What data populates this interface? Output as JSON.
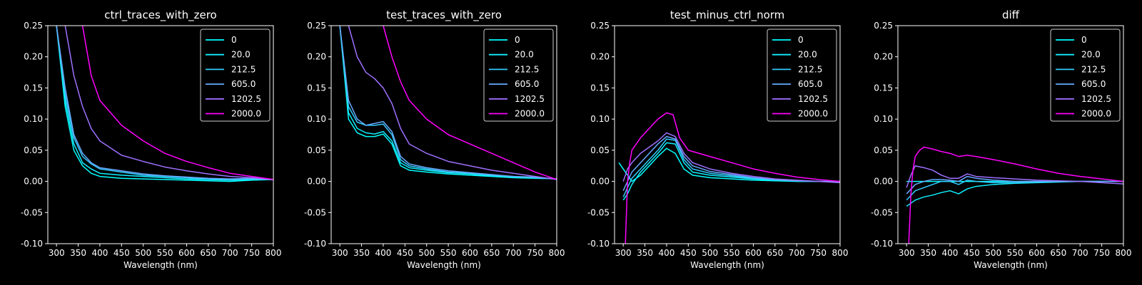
{
  "figure": {
    "background": "#000000",
    "foreground": "#ffffff"
  },
  "chart_data": [
    {
      "type": "line",
      "title": "ctrl_traces_with_zero",
      "xlabel": "Wavelength (nm)",
      "ylabel": "",
      "xlim": [
        280,
        800
      ],
      "ylim": [
        -0.1,
        0.25
      ],
      "xticks": [
        300,
        350,
        400,
        450,
        500,
        550,
        600,
        650,
        700,
        750,
        800
      ],
      "yticks": [
        -0.1,
        -0.05,
        0.0,
        0.05,
        0.1,
        0.15,
        0.2,
        0.25
      ],
      "legend_position": "top-right",
      "series": [
        {
          "name": "0",
          "color": "#00ffff",
          "x": [
            300,
            320,
            340,
            360,
            380,
            400,
            450,
            500,
            550,
            600,
            650,
            700,
            750,
            800
          ],
          "y": [
            0.25,
            0.12,
            0.05,
            0.025,
            0.013,
            0.008,
            0.005,
            0.004,
            0.003,
            0.002,
            0.001,
            0.0,
            0.002,
            0.003
          ]
        },
        {
          "name": "20.0",
          "color": "#0fefff",
          "x": [
            300,
            320,
            340,
            360,
            380,
            400,
            450,
            500,
            550,
            600,
            650,
            700,
            750,
            800
          ],
          "y": [
            0.25,
            0.13,
            0.06,
            0.03,
            0.02,
            0.013,
            0.01,
            0.008,
            0.006,
            0.004,
            0.003,
            0.002,
            0.003,
            0.003
          ]
        },
        {
          "name": "212.5",
          "color": "#33ccff",
          "x": [
            300,
            320,
            340,
            360,
            380,
            400,
            450,
            500,
            550,
            600,
            650,
            700,
            750,
            800
          ],
          "y": [
            0.25,
            0.14,
            0.07,
            0.04,
            0.028,
            0.02,
            0.015,
            0.01,
            0.008,
            0.006,
            0.004,
            0.003,
            0.004,
            0.003
          ]
        },
        {
          "name": "605.0",
          "color": "#66aaff",
          "x": [
            300,
            320,
            340,
            360,
            380,
            400,
            450,
            500,
            550,
            600,
            650,
            700,
            750,
            800
          ],
          "y": [
            0.25,
            0.15,
            0.075,
            0.045,
            0.03,
            0.022,
            0.017,
            0.012,
            0.009,
            0.007,
            0.005,
            0.004,
            0.005,
            0.003
          ]
        },
        {
          "name": "1202.5",
          "color": "#9f70ff",
          "x": [
            320,
            340,
            360,
            380,
            400,
            450,
            500,
            550,
            600,
            650,
            700,
            750,
            800
          ],
          "y": [
            0.25,
            0.17,
            0.12,
            0.085,
            0.065,
            0.042,
            0.032,
            0.023,
            0.017,
            0.012,
            0.008,
            0.006,
            0.003
          ]
        },
        {
          "name": "2000.0",
          "color": "#ff00ff",
          "x": [
            360,
            380,
            400,
            450,
            500,
            550,
            600,
            650,
            700,
            750,
            800
          ],
          "y": [
            0.25,
            0.17,
            0.13,
            0.09,
            0.065,
            0.045,
            0.032,
            0.022,
            0.013,
            0.008,
            0.003
          ]
        }
      ]
    },
    {
      "type": "line",
      "title": "test_traces_with_zero",
      "xlabel": "Wavelength (nm)",
      "ylabel": "",
      "xlim": [
        280,
        800
      ],
      "ylim": [
        -0.1,
        0.25
      ],
      "xticks": [
        300,
        350,
        400,
        450,
        500,
        550,
        600,
        650,
        700,
        750,
        800
      ],
      "yticks": [
        -0.1,
        -0.05,
        0.0,
        0.05,
        0.1,
        0.15,
        0.2,
        0.25
      ],
      "legend_position": "top-right",
      "series": [
        {
          "name": "0",
          "color": "#00ffff",
          "x": [
            300,
            320,
            340,
            360,
            380,
            400,
            420,
            440,
            460,
            500,
            550,
            600,
            650,
            700,
            750,
            800
          ],
          "y": [
            0.25,
            0.1,
            0.078,
            0.072,
            0.072,
            0.076,
            0.06,
            0.025,
            0.018,
            0.015,
            0.012,
            0.01,
            0.008,
            0.006,
            0.005,
            0.004
          ]
        },
        {
          "name": "20.0",
          "color": "#0fefff",
          "x": [
            300,
            320,
            340,
            360,
            380,
            400,
            420,
            440,
            460,
            500,
            550,
            600,
            650,
            700,
            750,
            800
          ],
          "y": [
            0.25,
            0.11,
            0.085,
            0.078,
            0.076,
            0.08,
            0.065,
            0.03,
            0.022,
            0.018,
            0.014,
            0.012,
            0.009,
            0.007,
            0.006,
            0.004
          ]
        },
        {
          "name": "212.5",
          "color": "#33ccff",
          "x": [
            300,
            320,
            340,
            360,
            380,
            400,
            420,
            440,
            460,
            500,
            550,
            600,
            650,
            700,
            750,
            800
          ],
          "y": [
            0.25,
            0.12,
            0.095,
            0.09,
            0.09,
            0.092,
            0.075,
            0.035,
            0.025,
            0.02,
            0.015,
            0.013,
            0.01,
            0.008,
            0.006,
            0.004
          ]
        },
        {
          "name": "605.0",
          "color": "#66aaff",
          "x": [
            300,
            320,
            340,
            360,
            380,
            400,
            420,
            440,
            460,
            500,
            550,
            600,
            650,
            700,
            750,
            800
          ],
          "y": [
            0.25,
            0.13,
            0.1,
            0.09,
            0.093,
            0.096,
            0.08,
            0.04,
            0.028,
            0.022,
            0.017,
            0.014,
            0.011,
            0.008,
            0.007,
            0.004
          ]
        },
        {
          "name": "1202.5",
          "color": "#9f70ff",
          "x": [
            320,
            340,
            360,
            380,
            400,
            420,
            440,
            460,
            500,
            550,
            600,
            650,
            700,
            750,
            800
          ],
          "y": [
            0.25,
            0.2,
            0.175,
            0.165,
            0.15,
            0.125,
            0.085,
            0.06,
            0.045,
            0.032,
            0.025,
            0.018,
            0.013,
            0.008,
            0.003
          ]
        },
        {
          "name": "2000.0",
          "color": "#ff00ff",
          "x": [
            400,
            420,
            440,
            460,
            500,
            550,
            600,
            650,
            700,
            750,
            800
          ],
          "y": [
            0.25,
            0.2,
            0.16,
            0.13,
            0.1,
            0.075,
            0.06,
            0.045,
            0.03,
            0.015,
            0.003
          ]
        }
      ]
    },
    {
      "type": "line",
      "title": "test_minus_ctrl_norm",
      "xlabel": "Wavelength (nm)",
      "ylabel": "",
      "xlim": [
        280,
        800
      ],
      "ylim": [
        -0.1,
        0.25
      ],
      "xticks": [
        300,
        350,
        400,
        450,
        500,
        550,
        600,
        650,
        700,
        750,
        800
      ],
      "yticks": [
        -0.1,
        -0.05,
        0.0,
        0.05,
        0.1,
        0.15,
        0.2,
        0.25
      ],
      "legend_position": "top-right",
      "series": [
        {
          "name": "0",
          "color": "#00ffff",
          "x": [
            290,
            300,
            320,
            340,
            360,
            380,
            400,
            420,
            440,
            460,
            500,
            550,
            600,
            650,
            700,
            750,
            800
          ],
          "y": [
            0.03,
            0.02,
            0.0,
            0.01,
            0.025,
            0.04,
            0.053,
            0.045,
            0.02,
            0.01,
            0.006,
            0.004,
            0.002,
            0.001,
            0.0,
            0.0,
            0.0
          ]
        },
        {
          "name": "20.0",
          "color": "#0fefff",
          "x": [
            300,
            310,
            320,
            340,
            360,
            380,
            400,
            420,
            440,
            460,
            500,
            550,
            600,
            650,
            700,
            750,
            800
          ],
          "y": [
            -0.03,
            -0.02,
            -0.005,
            0.015,
            0.03,
            0.045,
            0.062,
            0.06,
            0.03,
            0.015,
            0.01,
            0.007,
            0.004,
            0.002,
            0.001,
            0.0,
            0.0
          ]
        },
        {
          "name": "212.5",
          "color": "#33ccff",
          "x": [
            300,
            310,
            320,
            340,
            360,
            380,
            400,
            420,
            440,
            460,
            500,
            550,
            600,
            650,
            700,
            750,
            800
          ],
          "y": [
            -0.025,
            -0.01,
            0.005,
            0.02,
            0.035,
            0.05,
            0.068,
            0.066,
            0.035,
            0.02,
            0.013,
            0.009,
            0.005,
            0.003,
            0.001,
            0.0,
            0.0
          ]
        },
        {
          "name": "605.0",
          "color": "#66aaff",
          "x": [
            300,
            310,
            320,
            340,
            360,
            380,
            400,
            420,
            440,
            460,
            500,
            550,
            600,
            650,
            700,
            750,
            800
          ],
          "y": [
            -0.015,
            0.0,
            0.015,
            0.03,
            0.045,
            0.06,
            0.072,
            0.068,
            0.04,
            0.025,
            0.016,
            0.011,
            0.006,
            0.003,
            0.001,
            0.0,
            0.0
          ]
        },
        {
          "name": "1202.5",
          "color": "#9f70ff",
          "x": [
            300,
            310,
            320,
            340,
            360,
            380,
            400,
            420,
            440,
            460,
            500,
            550,
            600,
            650,
            700,
            750,
            800
          ],
          "y": [
            0.0,
            0.02,
            0.03,
            0.045,
            0.055,
            0.065,
            0.078,
            0.072,
            0.045,
            0.03,
            0.02,
            0.013,
            0.008,
            0.004,
            0.002,
            0.0,
            -0.002
          ]
        },
        {
          "name": "2000.0",
          "color": "#ff00ff",
          "x": [
            305,
            310,
            315,
            320,
            340,
            360,
            380,
            400,
            415,
            430,
            450,
            500,
            550,
            600,
            650,
            700,
            750,
            800
          ],
          "y": [
            -0.1,
            0.0,
            0.03,
            0.05,
            0.07,
            0.085,
            0.1,
            0.11,
            0.107,
            0.07,
            0.05,
            0.04,
            0.03,
            0.02,
            0.013,
            0.007,
            0.003,
            0.0
          ]
        }
      ]
    },
    {
      "type": "line",
      "title": "diff",
      "xlabel": "Wavelength (nm)",
      "ylabel": "",
      "xlim": [
        280,
        800
      ],
      "ylim": [
        -0.1,
        0.25
      ],
      "xticks": [
        300,
        350,
        400,
        450,
        500,
        550,
        600,
        650,
        700,
        750,
        800
      ],
      "yticks": [
        -0.1,
        -0.05,
        0.0,
        0.05,
        0.1,
        0.15,
        0.2,
        0.25
      ],
      "legend_position": "top-right",
      "series": [
        {
          "name": "0",
          "color": "#00ffff",
          "x": [
            300,
            350,
            400,
            450,
            500,
            550,
            600,
            650,
            700,
            750,
            800
          ],
          "y": [
            0.0,
            0.0,
            0.0,
            0.0,
            0.0,
            0.0,
            0.0,
            0.0,
            0.0,
            0.0,
            0.0
          ]
        },
        {
          "name": "20.0",
          "color": "#0fefff",
          "x": [
            300,
            320,
            340,
            360,
            380,
            400,
            420,
            440,
            460,
            500,
            550,
            600,
            650,
            700,
            750,
            800
          ],
          "y": [
            -0.04,
            -0.03,
            -0.025,
            -0.022,
            -0.018,
            -0.015,
            -0.02,
            -0.012,
            -0.008,
            -0.005,
            -0.003,
            -0.002,
            -0.001,
            0.0,
            0.0,
            0.0
          ]
        },
        {
          "name": "212.5",
          "color": "#33ccff",
          "x": [
            300,
            320,
            340,
            360,
            380,
            400,
            420,
            440,
            460,
            500,
            550,
            600,
            650,
            700,
            750,
            800
          ],
          "y": [
            -0.03,
            -0.015,
            -0.01,
            -0.005,
            0.0,
            0.0,
            -0.005,
            0.002,
            0.0,
            -0.002,
            -0.002,
            -0.001,
            0.0,
            0.0,
            0.0,
            0.0
          ]
        },
        {
          "name": "605.0",
          "color": "#66aaff",
          "x": [
            300,
            320,
            340,
            360,
            380,
            400,
            420,
            440,
            460,
            500,
            550,
            600,
            650,
            700,
            750,
            800
          ],
          "y": [
            -0.02,
            -0.005,
            0.0,
            0.003,
            0.003,
            0.002,
            0.0,
            0.008,
            0.005,
            0.002,
            0.0,
            0.0,
            0.0,
            0.0,
            0.0,
            0.0
          ]
        },
        {
          "name": "1202.5",
          "color": "#9f70ff",
          "x": [
            300,
            310,
            320,
            340,
            360,
            380,
            400,
            420,
            440,
            460,
            500,
            550,
            600,
            650,
            700,
            750,
            800
          ],
          "y": [
            -0.01,
            0.01,
            0.025,
            0.022,
            0.018,
            0.01,
            0.005,
            0.005,
            0.012,
            0.008,
            0.006,
            0.004,
            0.002,
            0.001,
            0.0,
            -0.002,
            -0.004
          ]
        },
        {
          "name": "2000.0",
          "color": "#ff00ff",
          "x": [
            305,
            310,
            315,
            320,
            330,
            340,
            360,
            380,
            400,
            420,
            440,
            460,
            500,
            550,
            600,
            650,
            700,
            750,
            800
          ],
          "y": [
            -0.1,
            -0.02,
            0.02,
            0.04,
            0.05,
            0.055,
            0.052,
            0.048,
            0.045,
            0.04,
            0.042,
            0.04,
            0.035,
            0.028,
            0.02,
            0.013,
            0.008,
            0.004,
            0.0
          ]
        }
      ]
    }
  ]
}
